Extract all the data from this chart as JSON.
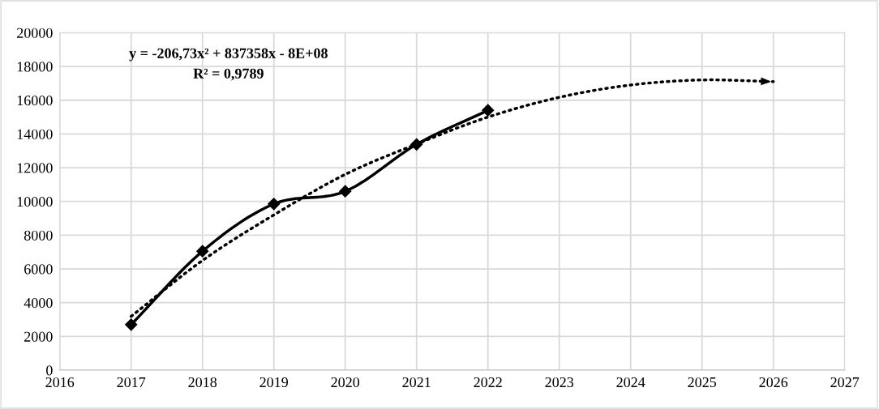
{
  "chart_data": {
    "type": "line",
    "series": [
      {
        "color": "#000000",
        "marker": "diamond",
        "line_style": "solid",
        "x": [
          2017,
          2018,
          2019,
          2020,
          2021,
          2022
        ],
        "values": [
          2700,
          7050,
          9850,
          10600,
          13380,
          15400
        ]
      },
      {
        "color": "#000000",
        "marker": "none",
        "line_style": "dotted",
        "x": [
          2017,
          2018,
          2019,
          2020,
          2021,
          2022,
          2023,
          2024,
          2025,
          2026
        ],
        "values": [
          3190,
          6500,
          9200,
          11600,
          13400,
          15000,
          16170,
          16900,
          17200,
          17100
        ]
      }
    ],
    "xlim": [
      2016,
      2027
    ],
    "xticks": [
      2016,
      2017,
      2018,
      2019,
      2020,
      2021,
      2022,
      2023,
      2024,
      2025,
      2026,
      2027
    ],
    "ylim": [
      0,
      20000
    ],
    "yticks": [
      0,
      2000,
      4000,
      6000,
      8000,
      10000,
      12000,
      14000,
      16000,
      18000,
      20000
    ],
    "grid": true,
    "annotations": [
      "y = -206,73x² + 837358x - 8E+08",
      "R² = 0,9789"
    ]
  }
}
